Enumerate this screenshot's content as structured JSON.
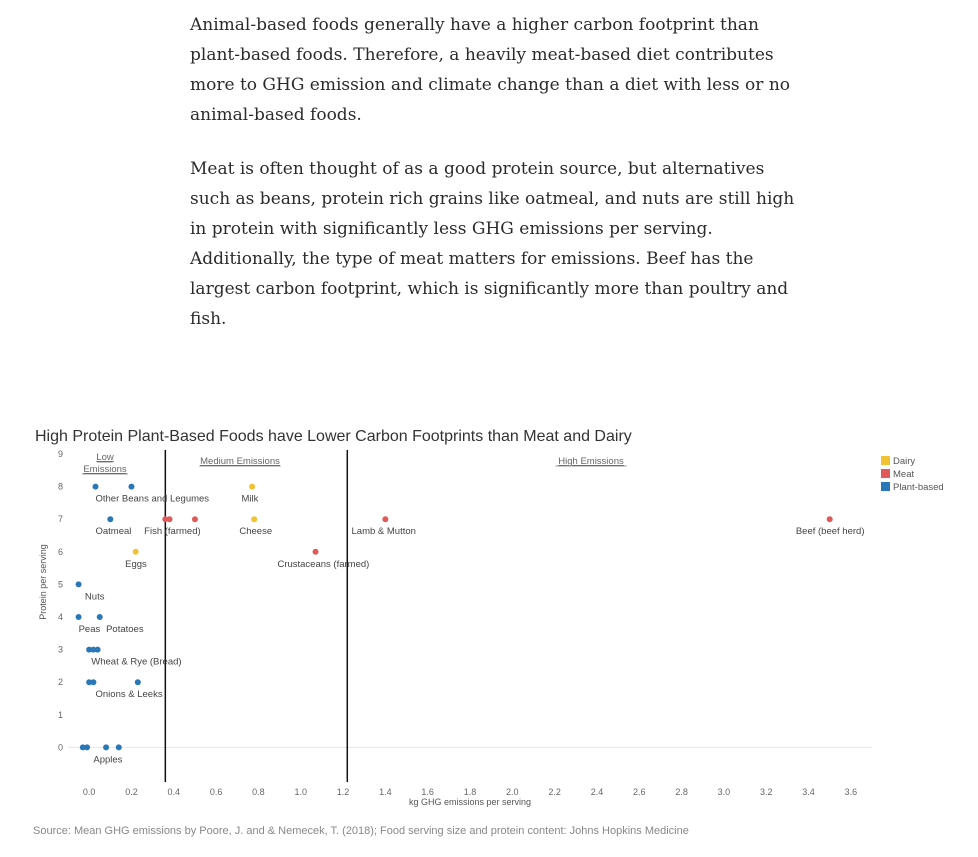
{
  "article": {
    "paragraphs": [
      "Animal-based foods generally have a higher carbon footprint than plant-based foods.  Therefore, a heavily meat-based diet contributes more to GHG emission and climate change than a diet with less or no animal-based foods.",
      "Meat is often thought of as a good protein source, but alternatives such as beans, protein rich grains like oatmeal, and nuts are still high in protein with significantly less GHG emissions per serving.  Additionally, the type of meat matters for emissions.  Beef has the largest carbon footprint, which is significantly more than poultry and fish."
    ]
  },
  "source": "Source: Mean GHG emissions by Poore, J. and & Nemecek, T. (2018); Food serving size and protein content: Johns Hopkins Medicine",
  "chart_data": {
    "type": "scatter",
    "title": "High Protein Plant-Based Foods have Lower Carbon Footprints than Meat and Dairy",
    "xlabel": "kg GHG emissions per serving",
    "ylabel": "Protein per serving",
    "xlim": [
      -0.1,
      3.7
    ],
    "ylim": [
      -1,
      9
    ],
    "xticks": [
      "0.0",
      "0.2",
      "0.4",
      "0.6",
      "0.8",
      "1.0",
      "1.2",
      "1.4",
      "1.6",
      "1.8",
      "2.0",
      "2.2",
      "2.4",
      "2.6",
      "2.8",
      "3.0",
      "3.2",
      "3.4",
      "3.6"
    ],
    "yticks": [
      "0",
      "1",
      "2",
      "3",
      "4",
      "5",
      "6",
      "7",
      "8",
      "9"
    ],
    "colors": {
      "Dairy": "#f1c232",
      "Meat": "#e05a5a",
      "Plant-based": "#2a77b8"
    },
    "legend": {
      "position": "top-right",
      "entries": [
        "Dairy",
        "Meat",
        "Plant-based"
      ]
    },
    "zones": [
      {
        "label": "Low Emissions",
        "label_lines": [
          "Low",
          "Emissions"
        ],
        "divider_x": 0.36
      },
      {
        "label": "Medium Emissions",
        "divider_x": 1.22
      },
      {
        "label": "High Emissions"
      }
    ],
    "points": [
      {
        "x": 0.03,
        "y": 8,
        "category": "Plant-based"
      },
      {
        "x": 0.2,
        "y": 8,
        "category": "Plant-based"
      },
      {
        "x": 0.77,
        "y": 8,
        "category": "Dairy"
      },
      {
        "x": 0.1,
        "y": 7,
        "category": "Plant-based"
      },
      {
        "x": 0.36,
        "y": 7,
        "category": "Meat"
      },
      {
        "x": 0.38,
        "y": 7,
        "category": "Meat"
      },
      {
        "x": 0.5,
        "y": 7,
        "category": "Meat"
      },
      {
        "x": 0.78,
        "y": 7,
        "category": "Dairy"
      },
      {
        "x": 1.4,
        "y": 7,
        "category": "Meat"
      },
      {
        "x": 3.5,
        "y": 7,
        "category": "Meat"
      },
      {
        "x": 0.22,
        "y": 6,
        "category": "Dairy"
      },
      {
        "x": 1.07,
        "y": 6,
        "category": "Meat"
      },
      {
        "x": -0.05,
        "y": 5,
        "category": "Plant-based"
      },
      {
        "x": -0.05,
        "y": 4,
        "category": "Plant-based"
      },
      {
        "x": 0.05,
        "y": 4,
        "category": "Plant-based"
      },
      {
        "x": 0.0,
        "y": 3,
        "category": "Plant-based"
      },
      {
        "x": 0.02,
        "y": 3,
        "category": "Plant-based"
      },
      {
        "x": 0.04,
        "y": 3,
        "category": "Plant-based"
      },
      {
        "x": 0.0,
        "y": 2,
        "category": "Plant-based"
      },
      {
        "x": 0.02,
        "y": 2,
        "category": "Plant-based"
      },
      {
        "x": 0.23,
        "y": 2,
        "category": "Plant-based"
      },
      {
        "x": -0.03,
        "y": 0,
        "category": "Plant-based"
      },
      {
        "x": -0.01,
        "y": 0,
        "category": "Plant-based"
      },
      {
        "x": 0.08,
        "y": 0,
        "category": "Plant-based"
      },
      {
        "x": 0.14,
        "y": 0,
        "category": "Plant-based"
      }
    ],
    "annotations": [
      {
        "text": "Other Beans and Legumes",
        "x": 0.03,
        "y": 8
      },
      {
        "text": "Milk",
        "x": 0.72,
        "y": 8
      },
      {
        "text": "Oatmeal",
        "x": 0.03,
        "y": 7
      },
      {
        "text": "Fish (farmed)",
        "x": 0.26,
        "y": 7
      },
      {
        "text": "Cheese",
        "x": 0.71,
        "y": 7
      },
      {
        "text": "Lamb & Mutton",
        "x": 1.24,
        "y": 7
      },
      {
        "text": "Beef (beef herd)",
        "x": 3.34,
        "y": 7
      },
      {
        "text": "Eggs",
        "x": 0.17,
        "y": 6
      },
      {
        "text": "Crustaceans (farmed)",
        "x": 0.89,
        "y": 6
      },
      {
        "text": "Nuts",
        "x": -0.02,
        "y": 5
      },
      {
        "text": "Potatoes",
        "x": 0.08,
        "y": 4
      },
      {
        "text": "Peas",
        "x": -0.05,
        "y": 4
      },
      {
        "text": "Wheat & Rye (Bread)",
        "x": 0.01,
        "y": 3
      },
      {
        "text": "Onions & Leeks",
        "x": 0.03,
        "y": 2
      },
      {
        "text": "Apples",
        "x": 0.02,
        "y": 0
      }
    ]
  }
}
